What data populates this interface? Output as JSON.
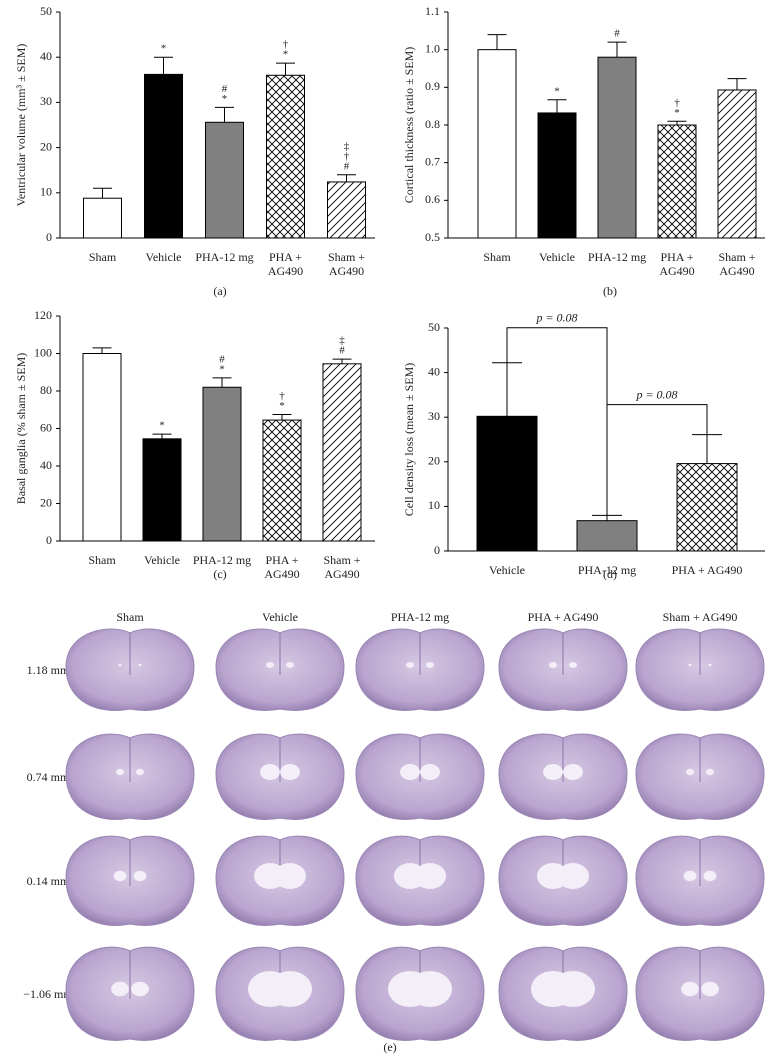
{
  "chart_data": [
    {
      "type": "bar",
      "panel": "(a)",
      "y_label": "Ventricular volume (mm³ ± SEM)",
      "categories": [
        [
          "Sham"
        ],
        [
          "Vehicle"
        ],
        [
          "PHA-12 mg"
        ],
        [
          "PHA +",
          "AG490"
        ],
        [
          "Sham +",
          "AG490"
        ]
      ],
      "values": [
        8.8,
        36.2,
        25.6,
        36.0,
        12.4
      ],
      "errors": [
        2.2,
        3.8,
        3.3,
        2.7,
        1.6
      ],
      "annotations": [
        [],
        [
          "*"
        ],
        [
          "#",
          "*"
        ],
        [
          "†",
          "*"
        ],
        [
          "‡",
          "†",
          "#"
        ]
      ],
      "fills": [
        "white",
        "black",
        "gray",
        "crosshatch",
        "hatch"
      ],
      "ylim": [
        0,
        50
      ],
      "yticks": [
        0,
        10,
        20,
        30,
        40,
        50
      ]
    },
    {
      "type": "bar",
      "panel": "(b)",
      "y_label": "Cortical thickness (ratio ± SEM)",
      "categories": [
        [
          "Sham"
        ],
        [
          "Vehicle"
        ],
        [
          "PHA-12 mg"
        ],
        [
          "PHA +",
          "AG490"
        ],
        [
          "Sham +",
          "AG490"
        ]
      ],
      "values": [
        1.0,
        0.832,
        0.98,
        0.8,
        0.893
      ],
      "errors": [
        0.04,
        0.035,
        0.04,
        0.01,
        0.03
      ],
      "annotations": [
        [],
        [
          "*"
        ],
        [
          "#"
        ],
        [
          "†",
          "*"
        ],
        []
      ],
      "fills": [
        "white",
        "black",
        "gray",
        "crosshatch",
        "hatch"
      ],
      "ylim": [
        0.5,
        1.1
      ],
      "yticks": [
        0.5,
        0.6,
        0.7,
        0.8,
        0.9,
        {
          "value": 1,
          "label": "1.0"
        },
        1.1
      ]
    },
    {
      "type": "bar",
      "panel": "(c)",
      "y_label": "Basal ganglia (% sham ± SEM)",
      "categories": [
        [
          "Sham"
        ],
        [
          "Vehicle"
        ],
        [
          "PHA-12 mg"
        ],
        [
          "PHA +",
          "AG490"
        ],
        [
          "Sham +",
          "AG490"
        ]
      ],
      "values": [
        100,
        54.5,
        82,
        64.5,
        94.5
      ],
      "errors": [
        3,
        2.5,
        5,
        3,
        2.5
      ],
      "annotations": [
        [],
        [
          "*"
        ],
        [
          "#",
          "*"
        ],
        [
          "†",
          "*"
        ],
        [
          "‡",
          "#"
        ]
      ],
      "fills": [
        "white",
        "black",
        "gray",
        "crosshatch",
        "hatch"
      ],
      "ylim": [
        0,
        120
      ],
      "yticks": [
        0,
        20,
        40,
        60,
        80,
        100,
        120
      ]
    },
    {
      "type": "bar",
      "panel": "(d)",
      "y_label": "Cell density loss (mean ± SEM)",
      "categories": [
        [
          "Vehicle"
        ],
        [
          "PHA-12 mg"
        ],
        [
          "PHA + AG490"
        ]
      ],
      "values": [
        30.2,
        6.8,
        19.6
      ],
      "errors": [
        12,
        1.2,
        6.5
      ],
      "annotations": [
        [],
        [],
        []
      ],
      "fills": [
        "black",
        "gray",
        "crosshatch"
      ],
      "brackets": [
        {
          "from": 0,
          "to": 1,
          "label": "p = 0.08"
        },
        {
          "from": 1,
          "to": 2,
          "label": "p = 0.08"
        }
      ],
      "ylim": [
        0,
        50
      ],
      "yticks": [
        0,
        10,
        20,
        30,
        40,
        50
      ]
    }
  ],
  "figure_e": {
    "panel": "(e)",
    "columns": [
      "Sham",
      "Vehicle",
      "PHA-12 mg",
      "PHA + AG490",
      "Sham + AG490"
    ],
    "rows": [
      "1.18 mm",
      "0.74 mm",
      "0.14 mm",
      "−1.06 mm"
    ]
  }
}
